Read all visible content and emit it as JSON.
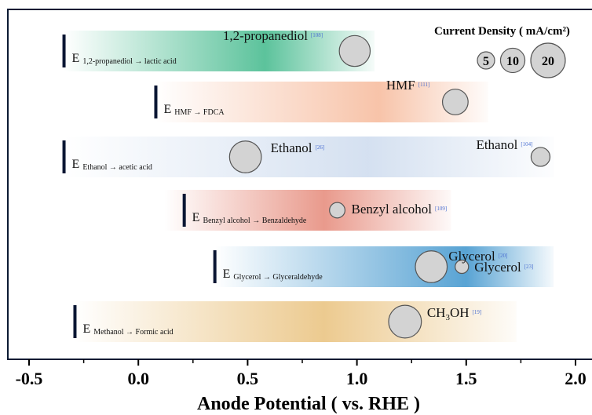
{
  "chart_data": {
    "type": "scatter",
    "title": "",
    "xlabel": "Anode Potential ( vs. RHE )",
    "ylabel": "",
    "xlim": [
      -0.5,
      2.0
    ],
    "xticks": [
      -0.5,
      0.0,
      0.5,
      1.0,
      1.5,
      2.0
    ],
    "xtick_labels": [
      "-0.5",
      "0.0",
      "0.5",
      "1.0",
      "1.5",
      "2.0"
    ],
    "grid": false,
    "legend": {
      "title": "Current Density ( mA/cm²)",
      "placement": "top-right",
      "sizes": [
        5,
        10,
        20
      ],
      "labels": [
        "5",
        "10",
        "20"
      ]
    },
    "rows": [
      {
        "name": "1,2-propanediol",
        "e_label": "E",
        "e_sub": "1,2-propanediol → lactic acid",
        "e_potential": -0.34,
        "band": [
          -0.34,
          1.08
        ],
        "color": "#3fb88a",
        "peak": 0.58,
        "points": [
          {
            "label": "1,2-propanediol",
            "ref": "[108]",
            "x": 0.99,
            "current_density": 16
          }
        ]
      },
      {
        "name": "HMF",
        "e_label": "E",
        "e_sub": "HMF →  FDCA",
        "e_potential": 0.08,
        "band": [
          0.08,
          1.6
        ],
        "color": "#f6b99a",
        "peak": 1.1,
        "points": [
          {
            "label": "HMF",
            "ref": "[111]",
            "x": 1.45,
            "current_density": 11
          }
        ]
      },
      {
        "name": "Ethanol",
        "e_label": "E",
        "e_sub": "Ethanol → acetic acid",
        "e_potential": -0.34,
        "band": [
          -0.34,
          1.9
        ],
        "color": "#cddbee",
        "peak": 1.05,
        "points": [
          {
            "label": "Ethanol",
            "ref": "[26]",
            "x": 0.49,
            "current_density": 17
          },
          {
            "label": "Ethanol",
            "ref": "[104]",
            "x": 1.84,
            "current_density": 6
          }
        ]
      },
      {
        "name": "Benzyl alcohol",
        "e_label": "E",
        "e_sub": "Benzyl alcohol → Benzaldehyde",
        "e_potential": 0.21,
        "band": [
          0.12,
          1.43
        ],
        "color": "#e58878",
        "peak": 0.85,
        "points": [
          {
            "label": "Benzyl alcohol",
            "ref": "[109]",
            "x": 0.91,
            "current_density": 4
          }
        ]
      },
      {
        "name": "Glycerol",
        "e_label": "E",
        "e_sub": "Glycerol → Glyceraldehyde",
        "e_potential": 0.35,
        "band": [
          0.35,
          1.9
        ],
        "color": "#3b93cc",
        "peak": 1.5,
        "points": [
          {
            "label": "Glycerol",
            "ref": "[20]",
            "x": 1.34,
            "current_density": 17
          },
          {
            "label": "Glycerol",
            "ref": "[23]",
            "x": 1.48,
            "current_density": 3
          }
        ]
      },
      {
        "name": "Methanol",
        "e_label": "E",
        "e_sub": "Methanol → Formic acid",
        "e_potential": -0.29,
        "band": [
          -0.29,
          1.73
        ],
        "color": "#e9c17c",
        "peak": 0.85,
        "points": [
          {
            "label": "CH",
            "label_sub": "3",
            "label_tail": "OH",
            "ref": "[19]",
            "x": 1.22,
            "current_density": 18
          }
        ]
      }
    ]
  }
}
